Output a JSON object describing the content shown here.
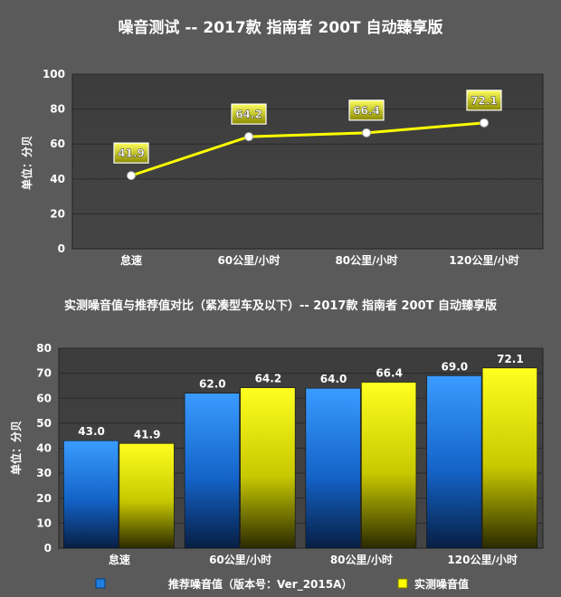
{
  "chart_data": [
    {
      "type": "line",
      "title": "噪音测试 -- 2017款 指南者 200T 自动臻享版",
      "ylabel": "单位：分贝",
      "categories": [
        "怠速",
        "60公里/小时",
        "80公里/小时",
        "120公里/小时"
      ],
      "values": [
        41.9,
        64.2,
        66.4,
        72.1
      ],
      "value_labels": [
        "41.9",
        "64.2",
        "66.4",
        "72.1"
      ],
      "ylim": [
        0,
        100
      ],
      "yticks": [
        "0",
        "20",
        "40",
        "60",
        "80",
        "100"
      ],
      "grid": true,
      "line_color": "#ffff00"
    },
    {
      "type": "bar",
      "title": "实测噪音值与推荐值对比（紧凑型车及以下）-- 2017款 指南者 200T 自动臻享版",
      "ylabel": "单位：分贝",
      "categories": [
        "怠速",
        "60公里/小时",
        "80公里/小时",
        "120公里/小时"
      ],
      "ylim": [
        0,
        80
      ],
      "yticks": [
        "0",
        "10",
        "20",
        "30",
        "40",
        "50",
        "60",
        "70",
        "80"
      ],
      "grid": true,
      "legend_position": "bottom",
      "series": [
        {
          "name": "推荐噪音值（版本号：Ver_2015A）",
          "values": [
            43.0,
            62.0,
            64.0,
            69.0
          ],
          "value_labels": [
            "43.0",
            "62.0",
            "64.0",
            "69.0"
          ],
          "color": "#1e7fe0"
        },
        {
          "name": "实测噪音值",
          "values": [
            41.9,
            64.2,
            66.4,
            72.1
          ],
          "value_labels": [
            "41.9",
            "64.2",
            "66.4",
            "72.1"
          ],
          "color": "#ffff00"
        }
      ]
    }
  ]
}
